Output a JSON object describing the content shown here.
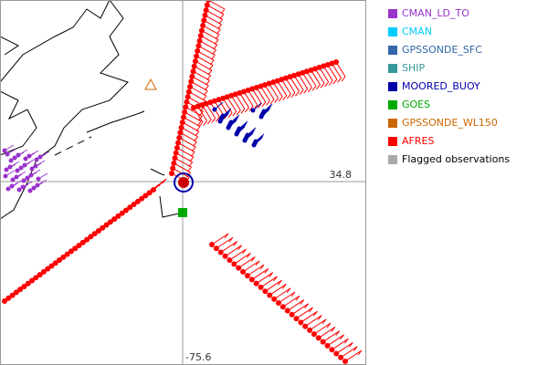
{
  "legend": [
    {
      "label": "CMAN_LD_TO",
      "color": "#9933cc"
    },
    {
      "label": "CMAN",
      "color": "#00ccff"
    },
    {
      "label": "GPSSONDE_SFC",
      "color": "#3366aa"
    },
    {
      "label": "SHIP",
      "color": "#339999"
    },
    {
      "label": "MOORED_BUOY",
      "color": "#0000aa"
    },
    {
      "label": "GOES",
      "color": "#00aa00"
    },
    {
      "label": "GPSSONDE_WL150",
      "color": "#cc6600"
    },
    {
      "label": "AFRES",
      "color": "#ff0000"
    },
    {
      "label": "Flagged observations",
      "color": "#aaaaaa"
    }
  ],
  "axis_labels": {
    "lat": "34.8",
    "lon": "-75.6"
  }
}
